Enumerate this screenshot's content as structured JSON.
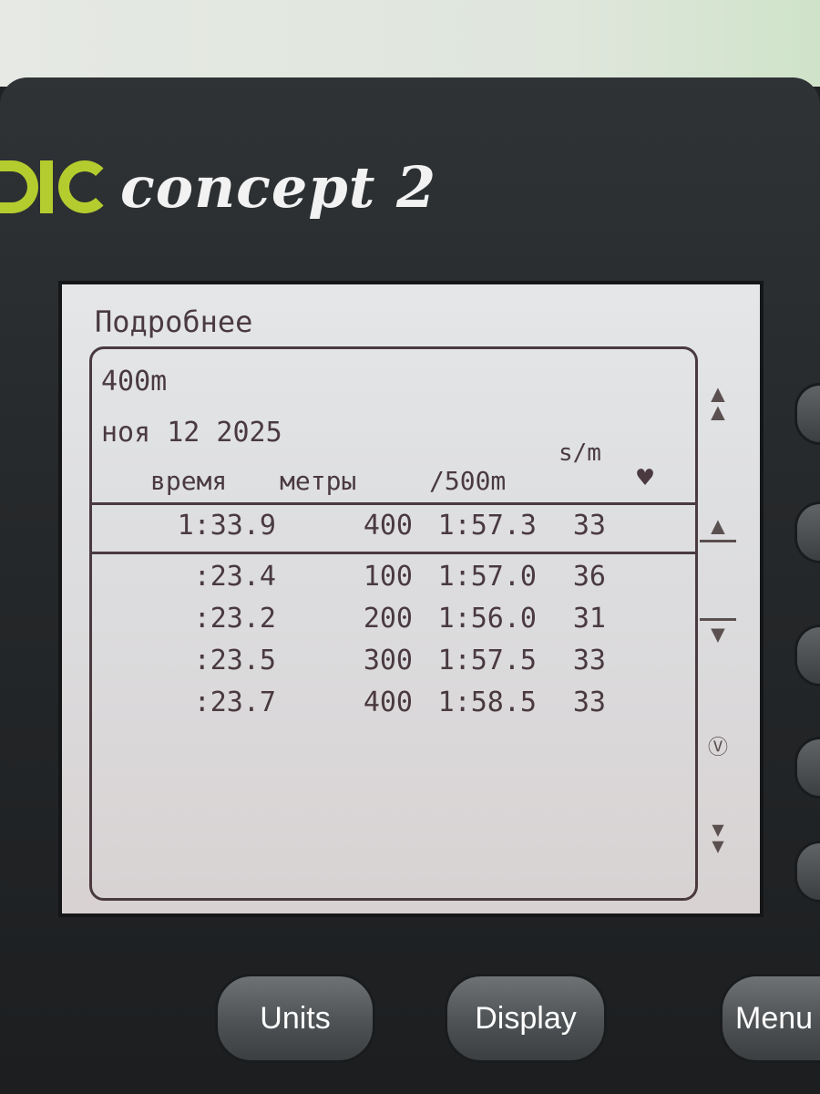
{
  "brand": {
    "name": "concept 2",
    "accent_color": "#b5cc2e"
  },
  "screen": {
    "title": "Подробнее",
    "workout": "400m",
    "date": "ноя 12 2025",
    "headers": {
      "time": "время",
      "meters": "метры",
      "pace": "/500m",
      "rate": "s/m",
      "heart": "heart-icon"
    },
    "summary": {
      "time": "1:33.9",
      "meters": "400",
      "pace": "1:57.3",
      "rate": "33"
    },
    "splits": [
      {
        "time": ":23.4",
        "meters": "100",
        "pace": "1:57.0",
        "rate": "36"
      },
      {
        "time": ":23.2",
        "meters": "200",
        "pace": "1:56.0",
        "rate": "31"
      },
      {
        "time": ":23.5",
        "meters": "300",
        "pace": "1:57.5",
        "rate": "33"
      },
      {
        "time": ":23.7",
        "meters": "400",
        "pace": "1:58.5",
        "rate": "33"
      }
    ],
    "side_icons": [
      "page-up-icon",
      "line-up-icon",
      "line-down-icon",
      "view-icon",
      "page-down-icon"
    ]
  },
  "buttons": {
    "units": "Units",
    "display": "Display",
    "menu": "Menu"
  }
}
